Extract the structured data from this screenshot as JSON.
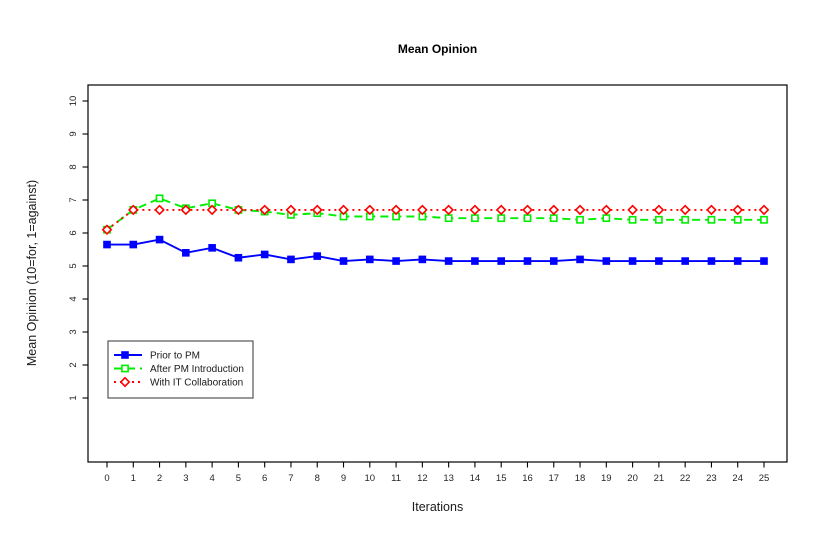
{
  "window": {
    "background": "#ffffff"
  },
  "chart_data": {
    "type": "line",
    "title": "Mean Opinion",
    "xlabel": "Iterations",
    "ylabel": "Mean Opinion (10=for, 1=against)",
    "grid": false,
    "axis_color": "#000000",
    "tick_text_color": "#262626",
    "legend": {
      "position": "left-middle",
      "border": true,
      "border_color": "#555555"
    },
    "xlim": [
      -0.7,
      25.9
    ],
    "ylim": [
      -0.9,
      10.5
    ],
    "x_ticks": [
      0,
      1,
      2,
      3,
      4,
      5,
      6,
      7,
      8,
      9,
      10,
      11,
      12,
      13,
      14,
      15,
      16,
      17,
      18,
      19,
      20,
      21,
      22,
      23,
      24,
      25
    ],
    "y_ticks": [
      1,
      2,
      3,
      4,
      5,
      6,
      7,
      8,
      9,
      10
    ],
    "x": [
      0,
      1,
      2,
      3,
      4,
      5,
      6,
      7,
      8,
      9,
      10,
      11,
      12,
      13,
      14,
      15,
      16,
      17,
      18,
      19,
      20,
      21,
      22,
      23,
      24,
      25
    ],
    "series": [
      {
        "name": "Prior to PM",
        "color": "#0000ff",
        "line_style": "solid",
        "marker": "filled-square",
        "values": [
          5.65,
          5.65,
          5.8,
          5.4,
          5.55,
          5.25,
          5.35,
          5.2,
          5.3,
          5.15,
          5.2,
          5.15,
          5.2,
          5.15,
          5.15,
          5.15,
          5.15,
          5.15,
          5.2,
          5.15,
          5.15,
          5.15,
          5.15,
          5.15,
          5.15,
          5.15
        ]
      },
      {
        "name": "After PM Introduction",
        "color": "#00ee00",
        "line_style": "dashed",
        "marker": "open-square",
        "values": [
          6.1,
          6.7,
          7.05,
          6.75,
          6.9,
          6.7,
          6.65,
          6.55,
          6.6,
          6.5,
          6.5,
          6.5,
          6.5,
          6.45,
          6.45,
          6.45,
          6.45,
          6.45,
          6.4,
          6.45,
          6.4,
          6.4,
          6.4,
          6.4,
          6.4,
          6.4
        ]
      },
      {
        "name": "With IT Collaboration",
        "color": "#ff0000",
        "line_style": "dotted",
        "marker": "open-diamond",
        "values": [
          6.1,
          6.7,
          6.7,
          6.7,
          6.7,
          6.7,
          6.7,
          6.7,
          6.7,
          6.7,
          6.7,
          6.7,
          6.7,
          6.7,
          6.7,
          6.7,
          6.7,
          6.7,
          6.7,
          6.7,
          6.7,
          6.7,
          6.7,
          6.7,
          6.7,
          6.7
        ]
      }
    ]
  }
}
